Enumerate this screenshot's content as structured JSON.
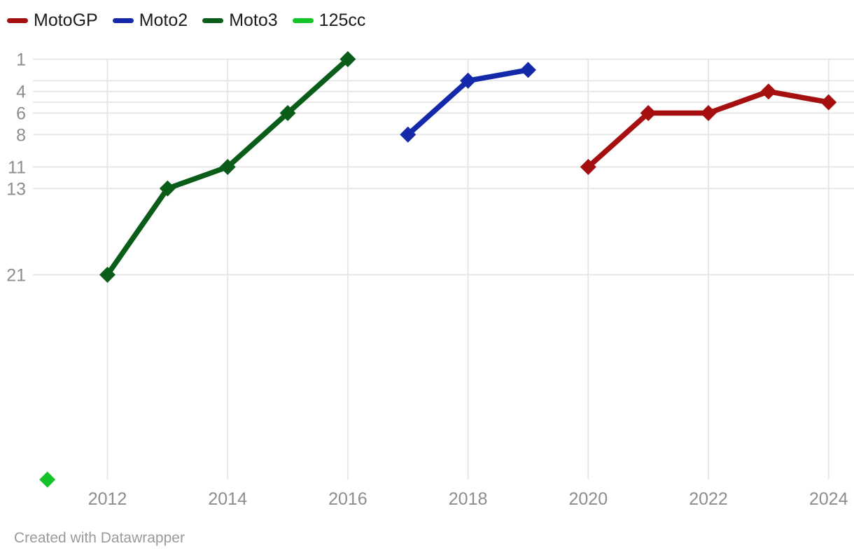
{
  "legend": {
    "items": [
      {
        "label": "MotoGP",
        "color": "#a50f0f"
      },
      {
        "label": "Moto2",
        "color": "#1428aa"
      },
      {
        "label": "Moto3",
        "color": "#0a5d18"
      },
      {
        "label": "125cc",
        "color": "#14c328"
      }
    ]
  },
  "footer": {
    "credit": "Created with Datawrapper"
  },
  "colors": {
    "grid": "#e7e7e7",
    "axis_text": "#8d8d8d",
    "legend_text": "#1c1c1c",
    "footer_text": "#9a9a9a",
    "background": "#ffffff"
  },
  "chart_data": {
    "type": "line",
    "title": "",
    "marker": "diamond",
    "grid": true,
    "legend_position": "top-left",
    "x_axis": {
      "tick_labels": [
        2012,
        2014,
        2016,
        2018,
        2020,
        2022,
        2024
      ],
      "range": [
        2010.8,
        2024.4
      ]
    },
    "y_axis": {
      "meaning": "championship position (1 = best, inverted axis)",
      "inverted": true,
      "range": [
        1,
        40
      ],
      "gridlines": [
        1,
        3,
        4,
        5,
        6,
        8,
        11,
        13,
        21
      ],
      "labeled_ticks": [
        1,
        4,
        6,
        8,
        11,
        13,
        21
      ]
    },
    "series": [
      {
        "name": "MotoGP",
        "color": "#a50f0f",
        "points": [
          {
            "year": 2020,
            "position": 11
          },
          {
            "year": 2021,
            "position": 6
          },
          {
            "year": 2022,
            "position": 6
          },
          {
            "year": 2023,
            "position": 4
          },
          {
            "year": 2024,
            "position": 5
          }
        ]
      },
      {
        "name": "Moto2",
        "color": "#1428aa",
        "points": [
          {
            "year": 2017,
            "position": 8
          },
          {
            "year": 2018,
            "position": 3
          },
          {
            "year": 2019,
            "position": 2
          }
        ]
      },
      {
        "name": "Moto3",
        "color": "#0a5d18",
        "points": [
          {
            "year": 2012,
            "position": 21
          },
          {
            "year": 2013,
            "position": 13
          },
          {
            "year": 2014,
            "position": 11
          },
          {
            "year": 2015,
            "position": 6
          },
          {
            "year": 2016,
            "position": 1
          }
        ]
      },
      {
        "name": "125cc",
        "color": "#14c328",
        "points": [
          {
            "year": 2011,
            "position": 40
          }
        ]
      }
    ]
  }
}
